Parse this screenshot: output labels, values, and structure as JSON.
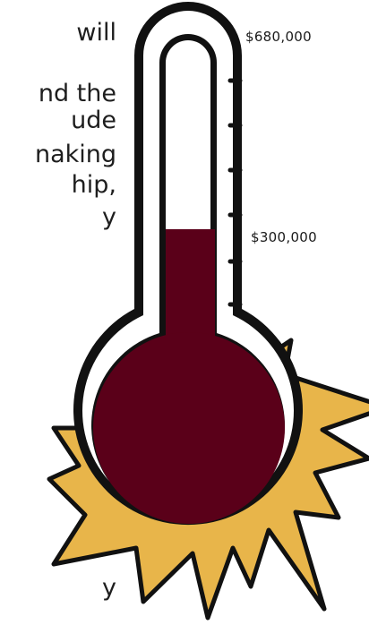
{
  "paragraph_fragments": {
    "line1": "will",
    "line2": "nd the",
    "line3": "ude",
    "line4": "naking",
    "line5": "hip,",
    "line6": "y",
    "line7": "y"
  },
  "thermometer": {
    "goal_label": "$680,000",
    "current_label": "$300,000",
    "goal_value": 680000,
    "current_value": 300000,
    "colors": {
      "mercury": "#5a0019",
      "burst": "#e8b54a",
      "outline": "#111111",
      "glass": "#ffffff"
    }
  }
}
